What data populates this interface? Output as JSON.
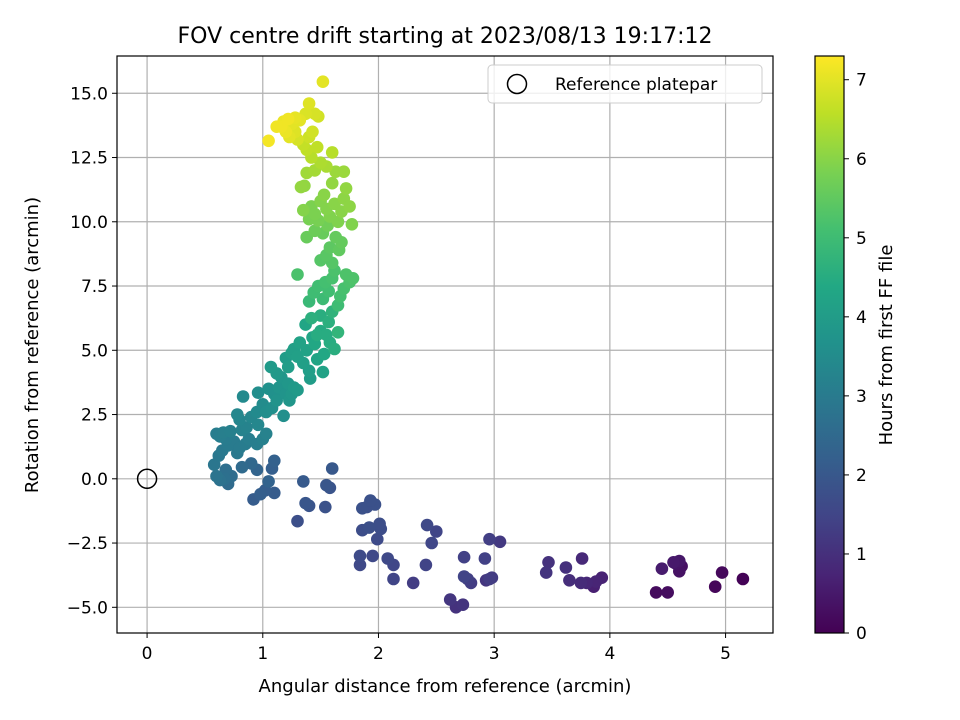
{
  "chart_data": {
    "type": "scatter",
    "title": "FOV centre drift starting at 2023/08/13 19:17:12",
    "xlabel": "Angular distance from reference (arcmin)",
    "ylabel": "Rotation from reference (arcmin)",
    "xlim": [
      -0.26,
      5.41
    ],
    "ylim": [
      -6.0,
      16.45
    ],
    "xticks": [
      0,
      1,
      2,
      3,
      4,
      5
    ],
    "yticks": [
      -5.0,
      -2.5,
      0.0,
      2.5,
      5.0,
      7.5,
      10.0,
      12.5,
      15.0
    ],
    "grid": true,
    "legend": {
      "position": "top-right",
      "entries": [
        "Reference platepar"
      ]
    },
    "reference_point": {
      "name": "Reference platepar",
      "x": 0,
      "y": 0,
      "marker": "open-circle"
    },
    "colorbar": {
      "label": "Hours from first FF file",
      "range": [
        0,
        7.3
      ],
      "ticks": [
        0,
        1,
        2,
        3,
        4,
        5,
        6,
        7
      ],
      "colormap": "viridis"
    },
    "points": [
      {
        "x": 5.15,
        "y": -3.9,
        "t": 0.05
      },
      {
        "x": 4.97,
        "y": -3.65,
        "t": 0.15
      },
      {
        "x": 4.91,
        "y": -4.2,
        "t": 0.1
      },
      {
        "x": 4.6,
        "y": -3.6,
        "t": 0.35
      },
      {
        "x": 4.57,
        "y": -3.3,
        "t": 0.4
      },
      {
        "x": 4.6,
        "y": -3.2,
        "t": 0.45
      },
      {
        "x": 4.55,
        "y": -3.25,
        "t": 0.5
      },
      {
        "x": 4.62,
        "y": -3.4,
        "t": 0.3
      },
      {
        "x": 4.45,
        "y": -3.5,
        "t": 0.55
      },
      {
        "x": 4.5,
        "y": -4.42,
        "t": 0.25
      },
      {
        "x": 4.4,
        "y": -4.42,
        "t": 0.2
      },
      {
        "x": 3.93,
        "y": -3.85,
        "t": 0.7
      },
      {
        "x": 3.88,
        "y": -4.0,
        "t": 0.75
      },
      {
        "x": 3.86,
        "y": -4.2,
        "t": 0.65
      },
      {
        "x": 3.8,
        "y": -4.05,
        "t": 0.8
      },
      {
        "x": 3.76,
        "y": -3.1,
        "t": 0.85
      },
      {
        "x": 3.75,
        "y": -4.05,
        "t": 0.9
      },
      {
        "x": 3.65,
        "y": -3.95,
        "t": 0.95
      },
      {
        "x": 3.62,
        "y": -3.45,
        "t": 1.0
      },
      {
        "x": 3.47,
        "y": -3.25,
        "t": 1.05
      },
      {
        "x": 3.45,
        "y": -3.65,
        "t": 1.1
      },
      {
        "x": 3.05,
        "y": -2.45,
        "t": 1.2
      },
      {
        "x": 2.98,
        "y": -3.85,
        "t": 1.25
      },
      {
        "x": 2.96,
        "y": -3.9,
        "t": 1.3
      },
      {
        "x": 2.93,
        "y": -3.95,
        "t": 1.15
      },
      {
        "x": 2.96,
        "y": -2.35,
        "t": 1.35
      },
      {
        "x": 2.92,
        "y": -3.1,
        "t": 1.4
      },
      {
        "x": 2.8,
        "y": -4.05,
        "t": 1.3
      },
      {
        "x": 2.77,
        "y": -3.9,
        "t": 1.35
      },
      {
        "x": 2.74,
        "y": -3.8,
        "t": 1.45
      },
      {
        "x": 2.74,
        "y": -3.05,
        "t": 1.4
      },
      {
        "x": 2.73,
        "y": -4.9,
        "t": 1.1
      },
      {
        "x": 2.67,
        "y": -5.0,
        "t": 1.05
      },
      {
        "x": 2.62,
        "y": -4.7,
        "t": 1.15
      },
      {
        "x": 2.5,
        "y": -2.05,
        "t": 1.5
      },
      {
        "x": 2.46,
        "y": -2.5,
        "t": 1.55
      },
      {
        "x": 2.42,
        "y": -1.8,
        "t": 1.6
      },
      {
        "x": 2.41,
        "y": -3.35,
        "t": 1.45
      },
      {
        "x": 2.3,
        "y": -4.05,
        "t": 1.3
      },
      {
        "x": 2.13,
        "y": -3.9,
        "t": 1.5
      },
      {
        "x": 2.13,
        "y": -3.35,
        "t": 1.55
      },
      {
        "x": 2.08,
        "y": -3.1,
        "t": 1.6
      },
      {
        "x": 2.02,
        "y": -1.95,
        "t": 1.7
      },
      {
        "x": 2.01,
        "y": -1.75,
        "t": 1.72
      },
      {
        "x": 1.99,
        "y": -2.35,
        "t": 1.65
      },
      {
        "x": 1.97,
        "y": -1.0,
        "t": 1.8
      },
      {
        "x": 1.95,
        "y": -3.0,
        "t": 1.6
      },
      {
        "x": 1.93,
        "y": -0.85,
        "t": 1.82
      },
      {
        "x": 1.92,
        "y": -1.9,
        "t": 1.75
      },
      {
        "x": 1.9,
        "y": -1.1,
        "t": 1.78
      },
      {
        "x": 1.86,
        "y": -1.15,
        "t": 1.8
      },
      {
        "x": 1.86,
        "y": -2.0,
        "t": 1.7
      },
      {
        "x": 1.84,
        "y": -3.0,
        "t": 1.65
      },
      {
        "x": 1.84,
        "y": -3.35,
        "t": 1.6
      },
      {
        "x": 1.6,
        "y": 0.4,
        "t": 2.0
      },
      {
        "x": 1.58,
        "y": -0.35,
        "t": 1.9
      },
      {
        "x": 1.55,
        "y": -0.25,
        "t": 1.95
      },
      {
        "x": 1.54,
        "y": -1.1,
        "t": 1.85
      },
      {
        "x": 1.4,
        "y": -1.05,
        "t": 1.9
      },
      {
        "x": 1.37,
        "y": -0.95,
        "t": 1.95
      },
      {
        "x": 1.35,
        "y": -0.1,
        "t": 2.05
      },
      {
        "x": 1.3,
        "y": -1.65,
        "t": 1.75
      },
      {
        "x": 1.1,
        "y": -0.55,
        "t": 2.1
      },
      {
        "x": 1.1,
        "y": 0.7,
        "t": 2.25
      },
      {
        "x": 1.08,
        "y": 0.4,
        "t": 2.2
      },
      {
        "x": 1.05,
        "y": -0.1,
        "t": 2.3
      },
      {
        "x": 1.02,
        "y": -0.45,
        "t": 2.15
      },
      {
        "x": 0.98,
        "y": -0.6,
        "t": 2.2
      },
      {
        "x": 0.95,
        "y": 0.35,
        "t": 2.35
      },
      {
        "x": 0.92,
        "y": -0.8,
        "t": 2.1
      },
      {
        "x": 0.9,
        "y": 0.6,
        "t": 2.45
      },
      {
        "x": 0.82,
        "y": 0.45,
        "t": 2.5
      },
      {
        "x": 0.73,
        "y": 0.1,
        "t": 2.6
      },
      {
        "x": 0.7,
        "y": -0.2,
        "t": 2.55
      },
      {
        "x": 0.68,
        "y": 0.35,
        "t": 2.65
      },
      {
        "x": 0.67,
        "y": 0.0,
        "t": 2.7
      },
      {
        "x": 0.63,
        "y": -0.05,
        "t": 2.75
      },
      {
        "x": 0.6,
        "y": 0.1,
        "t": 2.8
      },
      {
        "x": 0.58,
        "y": 0.55,
        "t": 2.85
      },
      {
        "x": 0.62,
        "y": 0.9,
        "t": 2.9
      },
      {
        "x": 0.65,
        "y": 1.1,
        "t": 2.95
      },
      {
        "x": 0.7,
        "y": 1.3,
        "t": 3.0
      },
      {
        "x": 0.68,
        "y": 1.55,
        "t": 3.05
      },
      {
        "x": 0.63,
        "y": 1.65,
        "t": 3.1
      },
      {
        "x": 0.6,
        "y": 1.75,
        "t": 3.08
      },
      {
        "x": 0.66,
        "y": 1.8,
        "t": 3.12
      },
      {
        "x": 0.72,
        "y": 1.85,
        "t": 3.15
      },
      {
        "x": 0.75,
        "y": 1.45,
        "t": 3.0
      },
      {
        "x": 0.78,
        "y": 1.0,
        "t": 2.95
      },
      {
        "x": 0.8,
        "y": 1.2,
        "t": 3.0
      },
      {
        "x": 0.85,
        "y": 1.35,
        "t": 3.05
      },
      {
        "x": 0.88,
        "y": 1.55,
        "t": 3.1
      },
      {
        "x": 0.82,
        "y": 1.9,
        "t": 3.2
      },
      {
        "x": 0.86,
        "y": 2.0,
        "t": 3.25
      },
      {
        "x": 0.8,
        "y": 2.3,
        "t": 3.3
      },
      {
        "x": 0.78,
        "y": 2.5,
        "t": 3.35
      },
      {
        "x": 0.83,
        "y": 3.2,
        "t": 3.45
      },
      {
        "x": 0.9,
        "y": 2.4,
        "t": 3.35
      },
      {
        "x": 0.95,
        "y": 1.35,
        "t": 3.1
      },
      {
        "x": 1.0,
        "y": 1.55,
        "t": 3.15
      },
      {
        "x": 1.03,
        "y": 1.75,
        "t": 3.2
      },
      {
        "x": 0.96,
        "y": 2.1,
        "t": 3.35
      },
      {
        "x": 0.95,
        "y": 2.6,
        "t": 3.45
      },
      {
        "x": 0.96,
        "y": 3.35,
        "t": 3.55
      },
      {
        "x": 1.0,
        "y": 2.9,
        "t": 3.5
      },
      {
        "x": 1.03,
        "y": 2.6,
        "t": 3.55
      },
      {
        "x": 1.05,
        "y": 3.5,
        "t": 3.65
      },
      {
        "x": 1.08,
        "y": 2.75,
        "t": 3.6
      },
      {
        "x": 1.1,
        "y": 3.3,
        "t": 3.65
      },
      {
        "x": 1.12,
        "y": 3.05,
        "t": 3.7
      },
      {
        "x": 1.14,
        "y": 3.55,
        "t": 3.75
      },
      {
        "x": 1.16,
        "y": 3.95,
        "t": 3.8
      },
      {
        "x": 1.18,
        "y": 2.45,
        "t": 3.6
      },
      {
        "x": 1.2,
        "y": 3.3,
        "t": 3.75
      },
      {
        "x": 1.22,
        "y": 3.7,
        "t": 3.85
      },
      {
        "x": 1.23,
        "y": 3.05,
        "t": 3.8
      },
      {
        "x": 1.25,
        "y": 3.3,
        "t": 3.85
      },
      {
        "x": 1.27,
        "y": 3.55,
        "t": 3.9
      },
      {
        "x": 1.3,
        "y": 3.45,
        "t": 3.95
      },
      {
        "x": 1.07,
        "y": 4.35,
        "t": 3.95
      },
      {
        "x": 1.12,
        "y": 4.1,
        "t": 3.9
      },
      {
        "x": 1.2,
        "y": 4.7,
        "t": 4.0
      },
      {
        "x": 1.22,
        "y": 4.35,
        "t": 4.02
      },
      {
        "x": 1.25,
        "y": 4.9,
        "t": 4.08
      },
      {
        "x": 1.27,
        "y": 5.05,
        "t": 4.1
      },
      {
        "x": 1.3,
        "y": 4.75,
        "t": 4.12
      },
      {
        "x": 1.32,
        "y": 5.3,
        "t": 4.18
      },
      {
        "x": 1.35,
        "y": 4.5,
        "t": 4.1
      },
      {
        "x": 1.37,
        "y": 6.0,
        "t": 4.3
      },
      {
        "x": 1.38,
        "y": 5.0,
        "t": 4.2
      },
      {
        "x": 1.4,
        "y": 4.2,
        "t": 4.05
      },
      {
        "x": 1.41,
        "y": 3.9,
        "t": 4.0
      },
      {
        "x": 1.43,
        "y": 5.5,
        "t": 4.3
      },
      {
        "x": 1.45,
        "y": 5.25,
        "t": 4.35
      },
      {
        "x": 1.47,
        "y": 4.65,
        "t": 4.25
      },
      {
        "x": 1.5,
        "y": 5.75,
        "t": 4.45
      },
      {
        "x": 1.5,
        "y": 6.35,
        "t": 4.55
      },
      {
        "x": 1.52,
        "y": 4.15,
        "t": 4.2
      },
      {
        "x": 1.53,
        "y": 4.85,
        "t": 4.35
      },
      {
        "x": 1.55,
        "y": 5.6,
        "t": 4.5
      },
      {
        "x": 1.57,
        "y": 6.1,
        "t": 4.6
      },
      {
        "x": 1.58,
        "y": 5.3,
        "t": 4.5
      },
      {
        "x": 1.6,
        "y": 6.5,
        "t": 4.7
      },
      {
        "x": 1.62,
        "y": 5.05,
        "t": 4.55
      },
      {
        "x": 1.65,
        "y": 5.7,
        "t": 4.75
      },
      {
        "x": 1.47,
        "y": 5.6,
        "t": 4.5
      },
      {
        "x": 1.42,
        "y": 6.25,
        "t": 4.6
      },
      {
        "x": 1.4,
        "y": 6.9,
        "t": 4.9
      },
      {
        "x": 1.44,
        "y": 7.25,
        "t": 5.0
      },
      {
        "x": 1.48,
        "y": 7.5,
        "t": 5.05
      },
      {
        "x": 1.52,
        "y": 7.0,
        "t": 4.95
      },
      {
        "x": 1.54,
        "y": 7.65,
        "t": 5.1
      },
      {
        "x": 1.57,
        "y": 7.3,
        "t": 5.05
      },
      {
        "x": 1.6,
        "y": 7.8,
        "t": 5.15
      },
      {
        "x": 1.62,
        "y": 8.1,
        "t": 5.2
      },
      {
        "x": 1.65,
        "y": 6.75,
        "t": 5.0
      },
      {
        "x": 1.67,
        "y": 7.1,
        "t": 5.1
      },
      {
        "x": 1.7,
        "y": 7.4,
        "t": 5.15
      },
      {
        "x": 1.72,
        "y": 7.95,
        "t": 5.25
      },
      {
        "x": 1.75,
        "y": 7.65,
        "t": 5.2
      },
      {
        "x": 1.78,
        "y": 7.8,
        "t": 5.25
      },
      {
        "x": 1.3,
        "y": 7.95,
        "t": 5.2
      },
      {
        "x": 1.5,
        "y": 8.5,
        "t": 5.35
      },
      {
        "x": 1.55,
        "y": 8.7,
        "t": 5.4
      },
      {
        "x": 1.58,
        "y": 9.0,
        "t": 5.45
      },
      {
        "x": 1.6,
        "y": 8.4,
        "t": 5.35
      },
      {
        "x": 1.63,
        "y": 9.4,
        "t": 5.55
      },
      {
        "x": 1.66,
        "y": 8.9,
        "t": 5.5
      },
      {
        "x": 1.68,
        "y": 9.2,
        "t": 5.55
      },
      {
        "x": 1.52,
        "y": 9.55,
        "t": 5.6
      },
      {
        "x": 1.56,
        "y": 9.85,
        "t": 5.7
      },
      {
        "x": 1.45,
        "y": 9.65,
        "t": 5.65
      },
      {
        "x": 1.38,
        "y": 9.4,
        "t": 5.6
      },
      {
        "x": 1.4,
        "y": 10.1,
        "t": 5.8
      },
      {
        "x": 1.42,
        "y": 10.6,
        "t": 5.85
      },
      {
        "x": 1.45,
        "y": 10.3,
        "t": 5.85
      },
      {
        "x": 1.48,
        "y": 10.05,
        "t": 5.8
      },
      {
        "x": 1.5,
        "y": 10.8,
        "t": 5.95
      },
      {
        "x": 1.53,
        "y": 11.05,
        "t": 6.0
      },
      {
        "x": 1.55,
        "y": 10.5,
        "t": 5.95
      },
      {
        "x": 1.58,
        "y": 10.2,
        "t": 5.9
      },
      {
        "x": 1.6,
        "y": 11.5,
        "t": 6.1
      },
      {
        "x": 1.62,
        "y": 10.7,
        "t": 6.0
      },
      {
        "x": 1.65,
        "y": 10.0,
        "t": 5.9
      },
      {
        "x": 1.68,
        "y": 10.4,
        "t": 6.0
      },
      {
        "x": 1.7,
        "y": 10.9,
        "t": 6.05
      },
      {
        "x": 1.72,
        "y": 11.3,
        "t": 6.1
      },
      {
        "x": 1.75,
        "y": 10.6,
        "t": 6.05
      },
      {
        "x": 1.77,
        "y": 9.9,
        "t": 5.9
      },
      {
        "x": 1.36,
        "y": 11.4,
        "t": 6.1
      },
      {
        "x": 1.33,
        "y": 11.35,
        "t": 6.12
      },
      {
        "x": 1.35,
        "y": 10.45,
        "t": 5.95
      },
      {
        "x": 1.63,
        "y": 11.95,
        "t": 6.2
      },
      {
        "x": 1.7,
        "y": 11.95,
        "t": 6.2
      },
      {
        "x": 1.38,
        "y": 11.9,
        "t": 6.25
      },
      {
        "x": 1.45,
        "y": 12.0,
        "t": 6.3
      },
      {
        "x": 1.5,
        "y": 12.3,
        "t": 6.4
      },
      {
        "x": 1.55,
        "y": 12.15,
        "t": 6.35
      },
      {
        "x": 1.6,
        "y": 12.7,
        "t": 6.5
      },
      {
        "x": 1.42,
        "y": 12.5,
        "t": 6.5
      },
      {
        "x": 1.38,
        "y": 12.8,
        "t": 6.6
      },
      {
        "x": 1.35,
        "y": 13.0,
        "t": 6.65
      },
      {
        "x": 1.4,
        "y": 13.3,
        "t": 6.75
      },
      {
        "x": 1.43,
        "y": 13.5,
        "t": 6.8
      },
      {
        "x": 1.47,
        "y": 12.9,
        "t": 6.6
      },
      {
        "x": 1.3,
        "y": 13.2,
        "t": 6.85
      },
      {
        "x": 1.28,
        "y": 13.5,
        "t": 6.95
      },
      {
        "x": 1.25,
        "y": 13.8,
        "t": 7.0
      },
      {
        "x": 1.23,
        "y": 13.3,
        "t": 7.0
      },
      {
        "x": 1.2,
        "y": 13.5,
        "t": 7.1
      },
      {
        "x": 1.18,
        "y": 13.9,
        "t": 7.1
      },
      {
        "x": 1.16,
        "y": 13.7,
        "t": 7.15
      },
      {
        "x": 1.22,
        "y": 14.0,
        "t": 7.15
      },
      {
        "x": 1.28,
        "y": 14.05,
        "t": 7.05
      },
      {
        "x": 1.32,
        "y": 13.95,
        "t": 7.0
      },
      {
        "x": 1.37,
        "y": 14.2,
        "t": 6.9
      },
      {
        "x": 1.4,
        "y": 14.6,
        "t": 6.95
      },
      {
        "x": 1.45,
        "y": 14.2,
        "t": 6.85
      },
      {
        "x": 1.48,
        "y": 14.1,
        "t": 6.8
      },
      {
        "x": 1.52,
        "y": 15.45,
        "t": 7.0
      },
      {
        "x": 1.05,
        "y": 13.15,
        "t": 7.2
      },
      {
        "x": 1.12,
        "y": 13.7,
        "t": 7.15
      }
    ]
  }
}
